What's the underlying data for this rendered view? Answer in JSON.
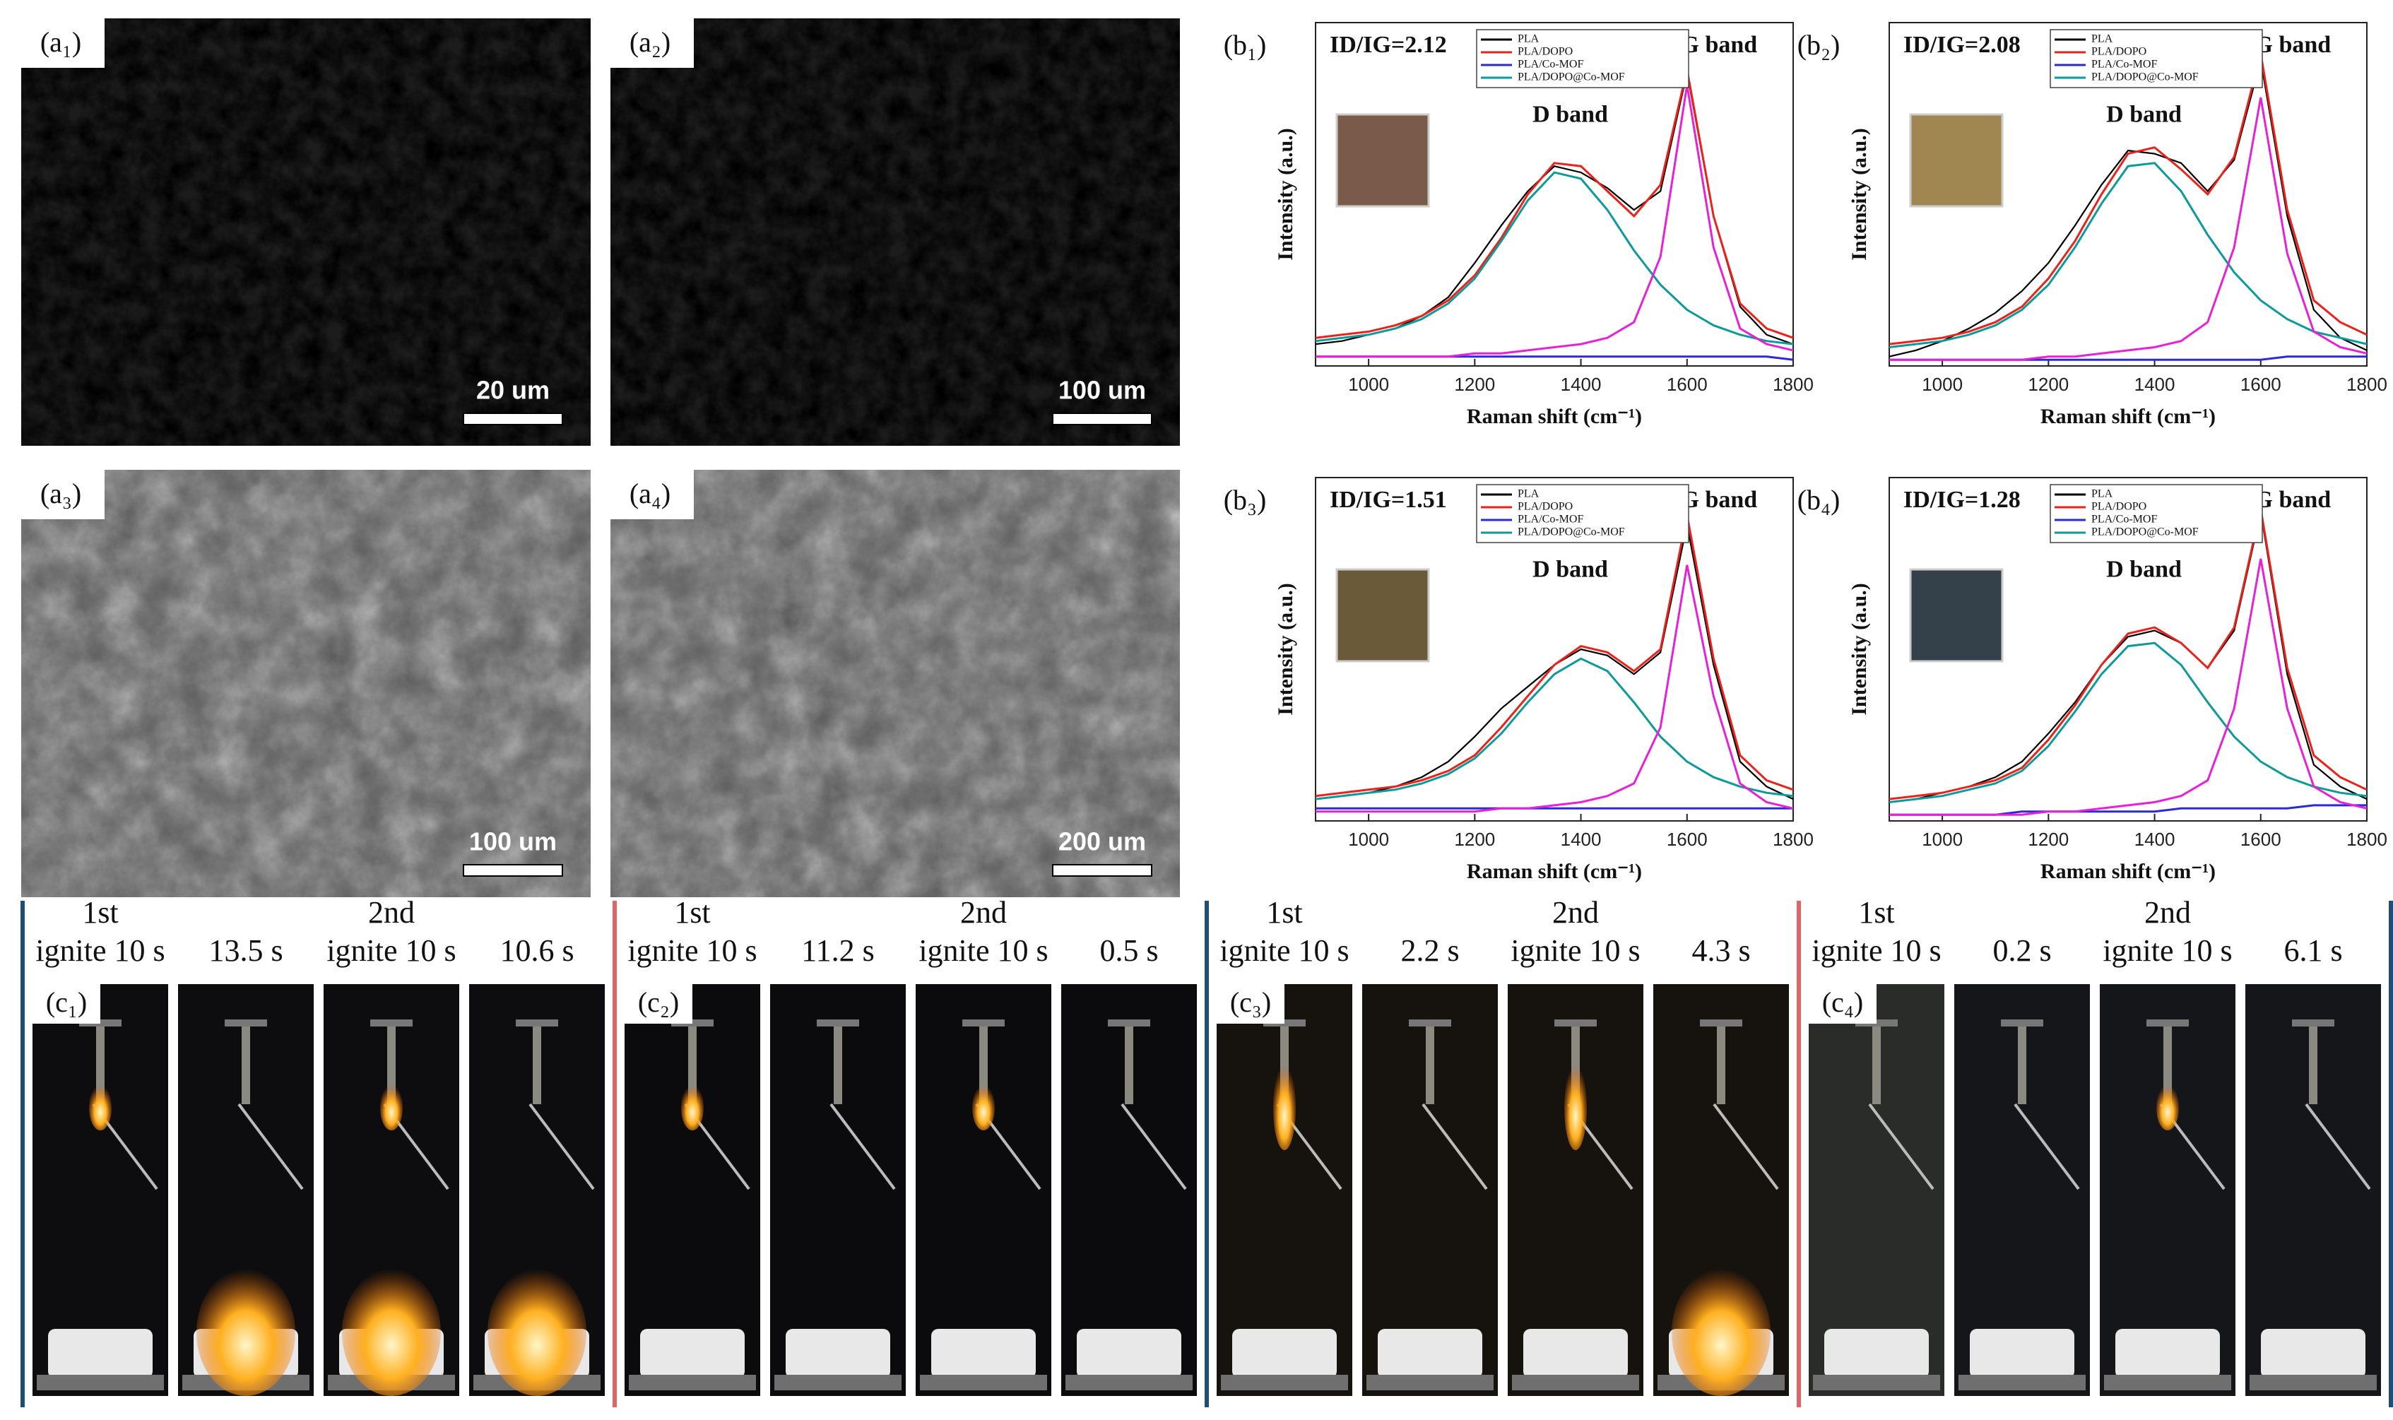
{
  "sem_panels": [
    {
      "label": "(a₁)",
      "scale_bar": "20 um"
    },
    {
      "label": "(a₂)",
      "scale_bar": "100 um"
    },
    {
      "label": "(a₃)",
      "scale_bar": "100 um"
    },
    {
      "label": "(a₄)",
      "scale_bar": "200 um"
    }
  ],
  "chart_data": [
    {
      "type": "line",
      "label": "(b₁)",
      "annotation": "ID/IG=2.12",
      "peak_labels": [
        "D band",
        "G band"
      ],
      "xlabel": "Raman shift (cm⁻¹)",
      "ylabel": "Intensity (a.u.)",
      "xlim": [
        900,
        1800
      ],
      "xticks": [
        1000,
        1200,
        1400,
        1600,
        1800
      ],
      "ylim": [
        0,
        110
      ],
      "x": [
        900,
        950,
        1000,
        1050,
        1100,
        1150,
        1200,
        1250,
        1300,
        1350,
        1400,
        1450,
        1500,
        1550,
        1600,
        1650,
        1700,
        1750,
        1800
      ],
      "series": [
        {
          "name": "PLA",
          "color": "#000000",
          "values": [
            7,
            8,
            10,
            12,
            16,
            22,
            33,
            45,
            56,
            64,
            62,
            57,
            50,
            56,
            94,
            48,
            19,
            10,
            7
          ]
        },
        {
          "name": "PLA/DOPO",
          "color": "#e8231c",
          "values": [
            9,
            10,
            11,
            13,
            16,
            21,
            29,
            41,
            55,
            65,
            64,
            56,
            48,
            58,
            95,
            48,
            20,
            12,
            9
          ]
        },
        {
          "name": "PLA/Co-MOF",
          "color": "#2b2bd6",
          "values": [
            3,
            3,
            3,
            3,
            3,
            3,
            3,
            3,
            3,
            3,
            3,
            3,
            3,
            3,
            3,
            3,
            3,
            3,
            2
          ]
        },
        {
          "name": "PLA/DOPO@Co-MOF",
          "color": "#0e9a9a",
          "values": [
            8,
            9,
            10,
            12,
            15,
            20,
            28,
            40,
            53,
            62,
            60,
            50,
            37,
            26,
            18,
            13,
            10,
            8,
            7
          ]
        },
        {
          "color": "#e622d6",
          "values": [
            3,
            3,
            3,
            3,
            3,
            3,
            4,
            4,
            5,
            6,
            7,
            9,
            14,
            35,
            90,
            38,
            12,
            7,
            5
          ]
        }
      ]
    },
    {
      "type": "line",
      "label": "(b₂)",
      "annotation": "ID/IG=2.08",
      "peak_labels": [
        "D band",
        "G band"
      ],
      "xlabel": "Raman shift (cm⁻¹)",
      "ylabel": "Intensity (a.u.)",
      "xlim": [
        900,
        1800
      ],
      "xticks": [
        1000,
        1200,
        1400,
        1600,
        1800
      ],
      "ylim": [
        0,
        110
      ],
      "x": [
        900,
        950,
        1000,
        1050,
        1100,
        1150,
        1200,
        1250,
        1300,
        1350,
        1400,
        1450,
        1500,
        1550,
        1600,
        1650,
        1700,
        1750,
        1800
      ],
      "series": [
        {
          "name": "PLA",
          "color": "#000000",
          "values": [
            3,
            5,
            8,
            12,
            17,
            24,
            33,
            45,
            58,
            69,
            68,
            65,
            56,
            66,
            98,
            48,
            18,
            9,
            5
          ]
        },
        {
          "name": "PLA/DOPO",
          "color": "#e8231c",
          "values": [
            7,
            8,
            9,
            11,
            14,
            19,
            28,
            40,
            55,
            68,
            70,
            63,
            55,
            67,
            100,
            50,
            21,
            14,
            10
          ]
        },
        {
          "name": "PLA/Co-MOF",
          "color": "#2b2bd6",
          "values": [
            2,
            2,
            2,
            2,
            2,
            2,
            2,
            2,
            2,
            2,
            2,
            2,
            2,
            2,
            2,
            3,
            3,
            3,
            3
          ]
        },
        {
          "name": "PLA/DOPO@Co-MOF",
          "color": "#0e9a9a",
          "values": [
            6,
            7,
            8,
            10,
            13,
            18,
            26,
            38,
            52,
            64,
            65,
            56,
            42,
            30,
            21,
            15,
            11,
            9,
            7
          ]
        },
        {
          "color": "#e622d6",
          "values": [
            2,
            2,
            2,
            2,
            2,
            2,
            3,
            3,
            4,
            5,
            6,
            8,
            14,
            38,
            86,
            36,
            11,
            6,
            4
          ]
        }
      ]
    },
    {
      "type": "line",
      "label": "(b₃)",
      "annotation": "ID/IG=1.51",
      "peak_labels": [
        "D band",
        "G band"
      ],
      "xlabel": "Raman shift (cm⁻¹)",
      "ylabel": "Intensity (a.u.)",
      "xlim": [
        900,
        1800
      ],
      "xticks": [
        1000,
        1200,
        1400,
        1600,
        1800
      ],
      "ylim": [
        0,
        110
      ],
      "x": [
        900,
        950,
        1000,
        1050,
        1100,
        1150,
        1200,
        1250,
        1300,
        1350,
        1400,
        1450,
        1500,
        1550,
        1600,
        1650,
        1700,
        1750,
        1800
      ],
      "series": [
        {
          "name": "PLA",
          "color": "#000000",
          "values": [
            7,
            8,
            9,
            11,
            14,
            19,
            27,
            36,
            43,
            50,
            55,
            53,
            47,
            54,
            95,
            50,
            19,
            11,
            7
          ]
        },
        {
          "name": "PLA/DOPO",
          "color": "#e8231c",
          "values": [
            8,
            9,
            10,
            11,
            13,
            16,
            21,
            30,
            40,
            50,
            56,
            54,
            48,
            55,
            98,
            52,
            21,
            13,
            10
          ]
        },
        {
          "name": "PLA/Co-MOF",
          "color": "#2b2bd6",
          "values": [
            4,
            4,
            4,
            4,
            4,
            4,
            4,
            4,
            4,
            4,
            4,
            4,
            4,
            4,
            4,
            4,
            4,
            4,
            4
          ]
        },
        {
          "name": "PLA/DOPO@Co-MOF",
          "color": "#0e9a9a",
          "values": [
            7,
            8,
            9,
            10,
            12,
            15,
            20,
            28,
            38,
            47,
            52,
            48,
            38,
            27,
            19,
            14,
            11,
            9,
            8
          ]
        },
        {
          "color": "#e622d6",
          "values": [
            3,
            3,
            3,
            3,
            3,
            3,
            3,
            4,
            4,
            5,
            6,
            8,
            12,
            30,
            82,
            40,
            12,
            6,
            4
          ]
        }
      ]
    },
    {
      "type": "line",
      "label": "(b₄)",
      "annotation": "ID/IG=1.28",
      "peak_labels": [
        "D band",
        "G band"
      ],
      "xlabel": "Raman shift (cm⁻¹)",
      "ylabel": "Intensity (a.u.)",
      "xlim": [
        900,
        1800
      ],
      "xticks": [
        1000,
        1200,
        1400,
        1600,
        1800
      ],
      "ylim": [
        0,
        110
      ],
      "x": [
        900,
        950,
        1000,
        1050,
        1100,
        1150,
        1200,
        1250,
        1300,
        1350,
        1400,
        1450,
        1500,
        1550,
        1600,
        1650,
        1700,
        1750,
        1800
      ],
      "series": [
        {
          "name": "PLA",
          "color": "#000000",
          "values": [
            6,
            7,
            9,
            11,
            14,
            19,
            28,
            38,
            50,
            59,
            61,
            57,
            49,
            61,
            99,
            47,
            18,
            11,
            7
          ]
        },
        {
          "name": "PLA/DOPO",
          "color": "#e8231c",
          "values": [
            7,
            8,
            9,
            11,
            13,
            17,
            26,
            37,
            50,
            60,
            62,
            57,
            49,
            62,
            100,
            49,
            21,
            14,
            10
          ]
        },
        {
          "name": "PLA/Co-MOF",
          "color": "#2b2bd6",
          "values": [
            2,
            2,
            2,
            2,
            2,
            3,
            3,
            3,
            3,
            3,
            3,
            4,
            4,
            4,
            4,
            4,
            5,
            5,
            5
          ]
        },
        {
          "name": "PLA/DOPO@Co-MOF",
          "color": "#0e9a9a",
          "values": [
            6,
            7,
            8,
            10,
            12,
            16,
            24,
            35,
            47,
            56,
            57,
            50,
            38,
            27,
            19,
            14,
            11,
            9,
            8
          ]
        },
        {
          "color": "#e622d6",
          "values": [
            2,
            2,
            2,
            2,
            2,
            2,
            3,
            3,
            4,
            5,
            6,
            8,
            13,
            36,
            84,
            36,
            11,
            6,
            4
          ]
        }
      ]
    }
  ],
  "burning_tests": [
    {
      "label": "(c₁)",
      "captions": [
        [
          "1st",
          "ignite 10 s"
        ],
        [
          "13.5 s"
        ],
        [
          "2nd",
          "ignite 10 s"
        ],
        [
          "10.6 s"
        ]
      ]
    },
    {
      "label": "(c₂)",
      "captions": [
        [
          "1st",
          "ignite 10 s"
        ],
        [
          "11.2 s"
        ],
        [
          "2nd",
          "ignite 10 s"
        ],
        [
          "0.5 s"
        ]
      ]
    },
    {
      "label": "(c₃)",
      "captions": [
        [
          "1st",
          "ignite 10 s"
        ],
        [
          "2.2 s"
        ],
        [
          "2nd",
          "ignite 10 s"
        ],
        [
          "4.3 s"
        ]
      ]
    },
    {
      "label": "(c₄)",
      "captions": [
        [
          "1st",
          "ignite 10 s"
        ],
        [
          "0.2 s"
        ],
        [
          "2nd",
          "ignite 10 s"
        ],
        [
          "6.1 s"
        ]
      ]
    }
  ]
}
